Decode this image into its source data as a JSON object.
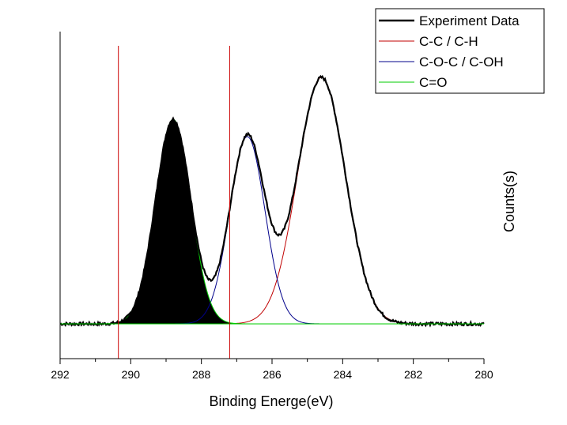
{
  "chart_data": {
    "type": "line",
    "xlabel": "Binding Energe(eV)",
    "ylabel": "Counts(s)",
    "xlim": [
      292,
      280
    ],
    "x_reversed": true,
    "x_ticks": [
      "292",
      "290",
      "288",
      "286",
      "284",
      "282",
      "280"
    ],
    "y_ticks_shown": false,
    "grid": false,
    "legend_position": "top-right",
    "legend": [
      "Experiment Data",
      "C-C / C-H",
      "C-O-C / C-OH",
      "C=O"
    ],
    "baseline": 0,
    "peaks": [
      {
        "name": "C-C / C-H",
        "center": 284.6,
        "height": 1.0,
        "sigma": 0.68,
        "color": "#c00000"
      },
      {
        "name": "C-O-C / C-OH",
        "center": 286.7,
        "height": 0.76,
        "sigma": 0.5,
        "color": "#00008b"
      },
      {
        "name": "C=O",
        "center": 288.8,
        "height": 0.83,
        "sigma": 0.5,
        "color": "#00cc00",
        "filled": true
      }
    ],
    "vertical_lines": [
      290.35,
      287.2
    ],
    "vertical_line_color": "#cc0000",
    "experiment_color": "#000000"
  }
}
